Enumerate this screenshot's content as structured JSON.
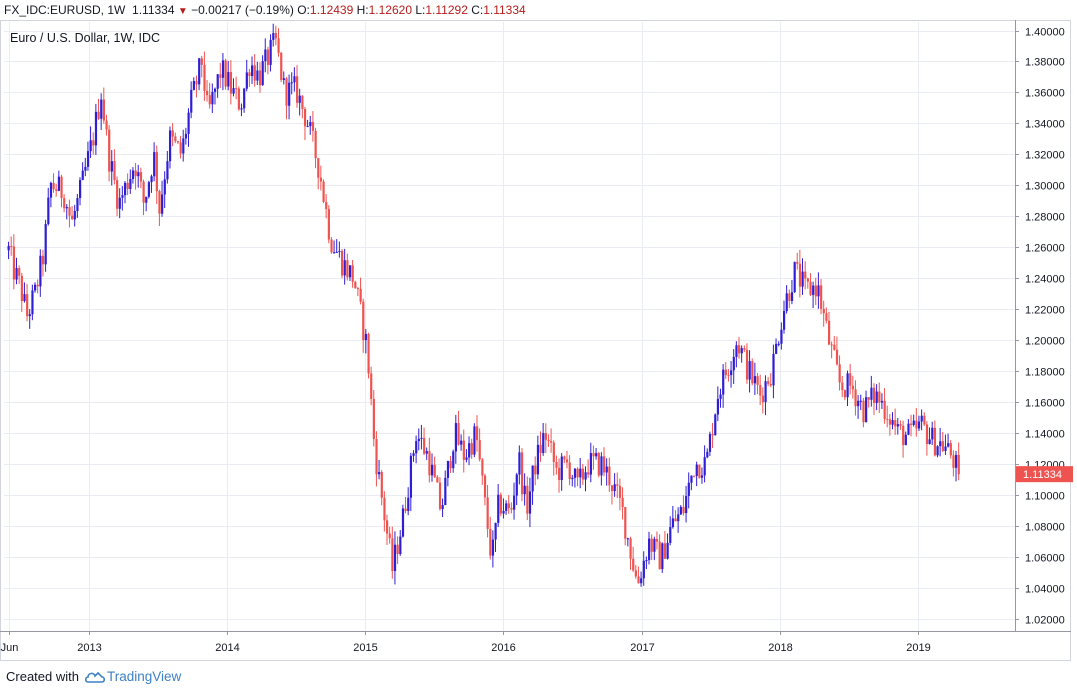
{
  "header": {
    "symbol": "FX_IDC:EURUSD, 1W",
    "last": "1.11334",
    "change": "−0.00217 (−0.19%)",
    "open_label": "O:",
    "open": "1.12439",
    "high_label": "H:",
    "high": "1.12620",
    "low_label": "L:",
    "low": "1.11292",
    "close_label": "C:",
    "close": "1.11334",
    "change_icon": "down-triangle-icon"
  },
  "footer": {
    "created_with": "Created with",
    "brand": "TradingView",
    "brand_icon": "tradingview-cloud-icon"
  },
  "colors": {
    "up": "#2e1ed6",
    "down": "#ef5350",
    "grid": "#e9ecf2",
    "price_tag": "#ef5350"
  },
  "chart_data": {
    "type": "candlestick",
    "title": "Euro / U.S. Dollar, 1W, IDC",
    "interval": "1W",
    "y_ticks": [
      "1.02000",
      "1.04000",
      "1.06000",
      "1.08000",
      "1.10000",
      "1.12000",
      "1.14000",
      "1.16000",
      "1.18000",
      "1.20000",
      "1.22000",
      "1.24000",
      "1.26000",
      "1.28000",
      "1.30000",
      "1.32000",
      "1.34000",
      "1.36000",
      "1.38000",
      "1.40000"
    ],
    "x_ticks": [
      "Jun",
      "2013",
      "2014",
      "2015",
      "2016",
      "2017",
      "2018",
      "2019"
    ],
    "ylim": [
      1.012,
      1.4055
    ],
    "grid": true,
    "last_price": "1.11334",
    "series_path": [
      [
        "2012-06-01",
        1.258
      ],
      [
        "2012-06-15",
        1.245
      ],
      [
        "2012-07-01",
        1.235
      ],
      [
        "2012-07-20",
        1.216
      ],
      [
        "2012-08-10",
        1.23
      ],
      [
        "2012-09-01",
        1.255
      ],
      [
        "2012-09-20",
        1.3
      ],
      [
        "2012-10-10",
        1.298
      ],
      [
        "2012-10-25",
        1.295
      ],
      [
        "2012-11-15",
        1.275
      ],
      [
        "2012-12-10",
        1.298
      ],
      [
        "2013-01-10",
        1.33
      ],
      [
        "2013-02-01",
        1.36
      ],
      [
        "2013-02-20",
        1.32
      ],
      [
        "2013-03-20",
        1.288
      ],
      [
        "2013-05-01",
        1.315
      ],
      [
        "2013-05-25",
        1.288
      ],
      [
        "2013-06-20",
        1.32
      ],
      [
        "2013-07-05",
        1.285
      ],
      [
        "2013-08-01",
        1.33
      ],
      [
        "2013-09-01",
        1.32
      ],
      [
        "2013-09-25",
        1.352
      ],
      [
        "2013-10-25",
        1.38
      ],
      [
        "2013-11-10",
        1.345
      ],
      [
        "2013-12-15",
        1.375
      ],
      [
        "2014-01-15",
        1.36
      ],
      [
        "2014-02-05",
        1.352
      ],
      [
        "2014-03-01",
        1.38
      ],
      [
        "2014-03-25",
        1.37
      ],
      [
        "2014-05-08",
        1.393
      ],
      [
        "2014-06-01",
        1.36
      ],
      [
        "2014-07-01",
        1.362
      ],
      [
        "2014-08-01",
        1.34
      ],
      [
        "2014-09-01",
        1.31
      ],
      [
        "2014-10-01",
        1.265
      ],
      [
        "2014-11-01",
        1.25
      ],
      [
        "2014-12-01",
        1.24
      ],
      [
        "2015-01-05",
        1.195
      ],
      [
        "2015-01-25",
        1.13
      ],
      [
        "2015-03-13",
        1.052
      ],
      [
        "2015-04-10",
        1.085
      ],
      [
        "2015-05-15",
        1.14
      ],
      [
        "2015-06-15",
        1.125
      ],
      [
        "2015-07-20",
        1.09
      ],
      [
        "2015-08-24",
        1.14
      ],
      [
        "2015-09-20",
        1.125
      ],
      [
        "2015-10-20",
        1.14
      ],
      [
        "2015-12-01",
        1.058
      ],
      [
        "2015-12-20",
        1.095
      ],
      [
        "2016-01-20",
        1.088
      ],
      [
        "2016-02-10",
        1.125
      ],
      [
        "2016-03-01",
        1.09
      ],
      [
        "2016-03-25",
        1.12
      ],
      [
        "2016-04-20",
        1.14
      ],
      [
        "2016-05-20",
        1.115
      ],
      [
        "2016-06-20",
        1.12
      ],
      [
        "2016-07-15",
        1.105
      ],
      [
        "2016-08-10",
        1.12
      ],
      [
        "2016-09-15",
        1.12
      ],
      [
        "2016-10-10",
        1.11
      ],
      [
        "2016-11-10",
        1.09
      ],
      [
        "2016-12-20",
        1.042
      ],
      [
        "2017-01-20",
        1.07
      ],
      [
        "2017-02-20",
        1.058
      ],
      [
        "2017-03-20",
        1.08
      ],
      [
        "2017-04-20",
        1.09
      ],
      [
        "2017-05-20",
        1.12
      ],
      [
        "2017-06-20",
        1.12
      ],
      [
        "2017-07-20",
        1.165
      ],
      [
        "2017-08-20",
        1.185
      ],
      [
        "2017-09-10",
        1.2
      ],
      [
        "2017-10-10",
        1.18
      ],
      [
        "2017-11-10",
        1.165
      ],
      [
        "2017-12-10",
        1.18
      ],
      [
        "2018-01-10",
        1.22
      ],
      [
        "2018-02-10",
        1.245
      ],
      [
        "2018-03-10",
        1.232
      ],
      [
        "2018-04-10",
        1.235
      ],
      [
        "2018-05-10",
        1.2
      ],
      [
        "2018-06-10",
        1.17
      ],
      [
        "2018-07-10",
        1.17
      ],
      [
        "2018-08-10",
        1.155
      ],
      [
        "2018-09-10",
        1.165
      ],
      [
        "2018-10-10",
        1.155
      ],
      [
        "2018-11-10",
        1.14
      ],
      [
        "2018-12-10",
        1.138
      ],
      [
        "2019-01-10",
        1.145
      ],
      [
        "2019-02-10",
        1.135
      ],
      [
        "2019-03-10",
        1.132
      ],
      [
        "2019-04-01",
        1.125
      ],
      [
        "2019-04-19",
        1.1133
      ]
    ]
  }
}
